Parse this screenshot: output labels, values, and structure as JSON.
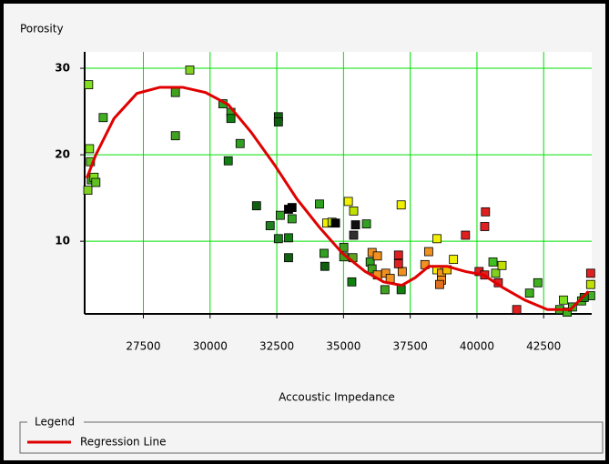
{
  "chart_data": {
    "type": "scatter",
    "title": "Porosity",
    "xlabel": "Accoustic Impedance",
    "legend_title": "Legend",
    "legend": "bottom",
    "grid": true,
    "grid_color": "#00e000",
    "xlim": [
      25300,
      44300
    ],
    "ylim": [
      1.6,
      31.9
    ],
    "xticks": [
      27500,
      30000,
      32500,
      35000,
      37500,
      40000,
      42500
    ],
    "yticks": [
      10,
      20,
      30
    ],
    "x": [
      25448,
      25482,
      25516,
      25550,
      25653,
      25720,
      25420,
      25995,
      28700,
      28700,
      29240,
      30480,
      30780,
      30780,
      31125,
      30680,
      32560,
      32560,
      31740,
      32250,
      32630,
      32560,
      32940,
      33070,
      32940,
      33070,
      32940,
      34100,
      34270,
      34300,
      34370,
      34570,
      34700,
      35180,
      35380,
      35380,
      35450,
      35010,
      35010,
      35350,
      35310,
      35860,
      36000,
      36070,
      36270,
      36070,
      36270,
      36580,
      36750,
      36550,
      37160,
      37200,
      37160,
      37060,
      37060,
      38050,
      38190,
      38500,
      38500,
      38670,
      38670,
      38600,
      38880,
      39120,
      39570,
      40320,
      40290,
      40080,
      40290,
      40600,
      40700,
      40940,
      40800,
      41490,
      41970,
      42280,
      43100,
      43380,
      43580,
      43240,
      43920,
      44260,
      44260,
      44260,
      44020
    ],
    "values": [
      28.1,
      20.7,
      19.2,
      17.1,
      17.4,
      16.8,
      15.9,
      24.3,
      27.2,
      22.2,
      29.8,
      25.9,
      24.9,
      24.2,
      21.3,
      19.3,
      24.4,
      23.8,
      14.1,
      11.8,
      13.0,
      10.3,
      10.4,
      12.6,
      13.7,
      13.9,
      8.1,
      14.3,
      8.6,
      7.1,
      12.1,
      12.2,
      12.1,
      14.6,
      13.5,
      10.7,
      11.9,
      9.3,
      8.2,
      8.1,
      5.3,
      12.0,
      7.6,
      8.7,
      8.3,
      6.8,
      6.1,
      6.3,
      5.7,
      4.4,
      4.4,
      6.5,
      14.2,
      8.4,
      7.4,
      7.3,
      8.8,
      10.3,
      6.7,
      6.3,
      5.5,
      5.0,
      6.7,
      7.9,
      10.7,
      13.4,
      11.7,
      6.5,
      6.1,
      7.6,
      6.3,
      7.2,
      5.2,
      2.1,
      4.0,
      5.2,
      2.1,
      1.8,
      2.4,
      3.2,
      3.1,
      6.3,
      5.0,
      3.7,
      3.5
    ],
    "colors": [
      "#80e020",
      "#80e020",
      "#60c020",
      "#40a020",
      "#80e020",
      "#60c020",
      "#80d020",
      "#40b020",
      "#40a020",
      "#40a020",
      "#80d020",
      "#30a020",
      "#30a020",
      "#108010",
      "#30a020",
      "#108010",
      "#106010",
      "#106010",
      "#106010",
      "#208020",
      "#30a020",
      "#208020",
      "#108010",
      "#30a020",
      "#000000",
      "#000000",
      "#106010",
      "#30a020",
      "#30a020",
      "#106010",
      "#f0f000",
      "#c0e000",
      "#000000",
      "#f0f000",
      "#c0e000",
      "#303030",
      "#101010",
      "#40a020",
      "#40a020",
      "#60a020",
      "#108010",
      "#30a020",
      "#30a020",
      "#f09020",
      "#f09020",
      "#40a020",
      "#f09020",
      "#f09020",
      "#f09020",
      "#40a020",
      "#108010",
      "#f09020",
      "#f0f000",
      "#e02020",
      "#e02020",
      "#f09020",
      "#f09020",
      "#f0f000",
      "#f0f000",
      "#f09020",
      "#f09020",
      "#e07020",
      "#f0c000",
      "#f0f000",
      "#e02020",
      "#e02020",
      "#e02020",
      "#e02020",
      "#e02020",
      "#40c020",
      "#80d020",
      "#c0e000",
      "#e02020",
      "#e02020",
      "#40b020",
      "#40b020",
      "#40b020",
      "#40b020",
      "#40b020",
      "#80e020",
      "#40b020",
      "#e02020",
      "#c0e000",
      "#40b020",
      "#108010"
    ],
    "regression": {
      "name": "Regression Line",
      "color": "#e00000",
      "x": [
        25380,
        25720,
        26400,
        27260,
        28120,
        28970,
        29830,
        30680,
        31540,
        32400,
        33250,
        34100,
        34960,
        35810,
        36500,
        37180,
        37690,
        38200,
        38880,
        39570,
        40250,
        40940,
        41790,
        42640,
        43500,
        44180
      ],
      "values": [
        17.3,
        20.0,
        24.2,
        27.1,
        27.8,
        27.8,
        27.2,
        25.8,
        22.6,
        18.9,
        14.9,
        11.6,
        8.6,
        6.5,
        5.3,
        4.9,
        5.8,
        7.1,
        7.1,
        6.5,
        6.1,
        4.7,
        3.2,
        2.1,
        2.1,
        4.2
      ]
    }
  }
}
